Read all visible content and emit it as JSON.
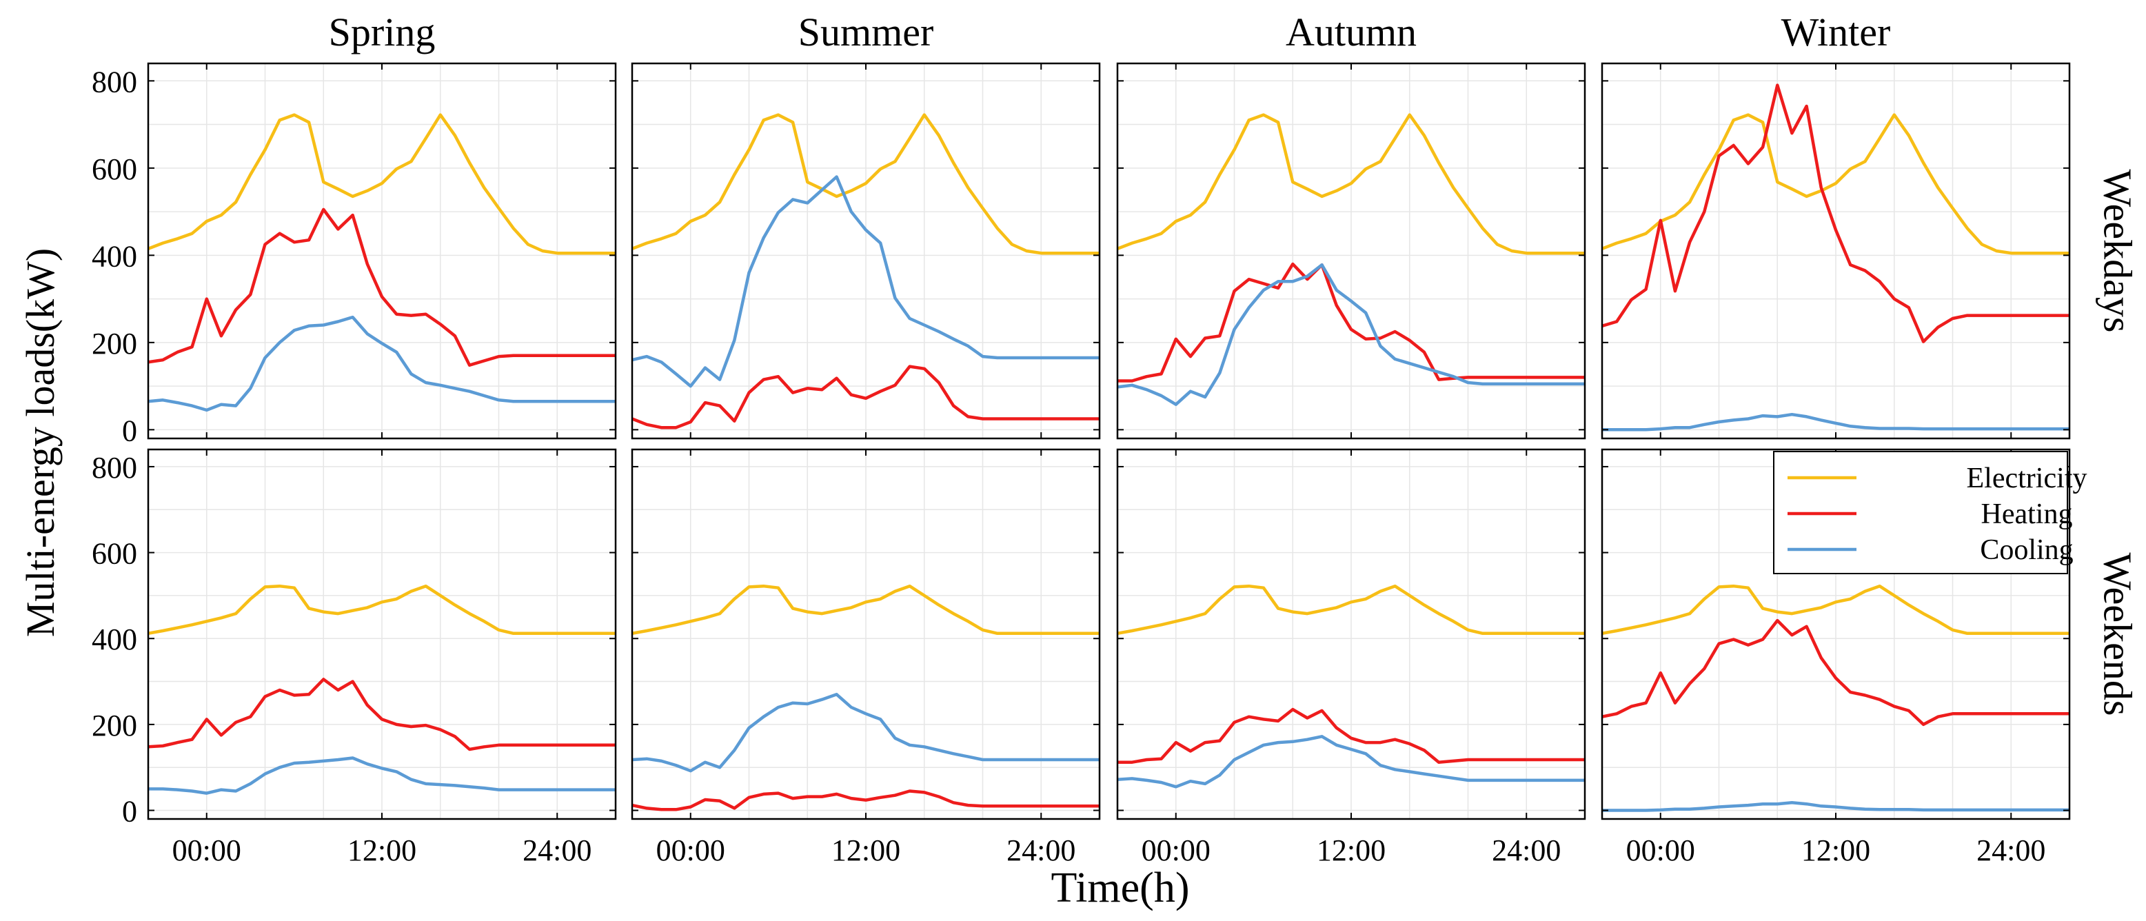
{
  "chart_data": {
    "type": "line",
    "ylabel": "Multi-energy loads(kW)",
    "xlabel": "Time(h)",
    "columns": [
      "Spring",
      "Summer",
      "Autumn",
      "Winter"
    ],
    "rows": [
      "Weekdays",
      "Weekends"
    ],
    "xlim": [
      -4,
      28
    ],
    "ylim": [
      -20,
      840
    ],
    "x_ticks": [
      0,
      12,
      24
    ],
    "x_tick_labels": [
      "00:00",
      "12:00",
      "24:00"
    ],
    "y_ticks": [
      0,
      200,
      400,
      600,
      800
    ],
    "y_tick_labels": [
      "0",
      "200",
      "400",
      "600",
      "800"
    ],
    "grid": true,
    "legend": {
      "location": "top-right of Winter weekends panel",
      "entries": [
        "Electricity",
        "Heating",
        "Cooling"
      ]
    },
    "colors": {
      "Electricity": "#F7BE16",
      "Heating": "#EE1C1C",
      "Cooling": "#5B9BD5"
    },
    "x": [
      -4,
      -3,
      -2,
      -1,
      0,
      1,
      2,
      3,
      4,
      5,
      6,
      7,
      8,
      9,
      10,
      11,
      12,
      13,
      14,
      15,
      16,
      17,
      18,
      19,
      20,
      21,
      22,
      23,
      24,
      25,
      26,
      27,
      28
    ],
    "panels": [
      {
        "season": "Spring",
        "day": "Weekdays",
        "series": [
          {
            "name": "Electricity",
            "values": [
              415,
              428,
              438,
              450,
              478,
              492,
              522,
              585,
              642,
              710,
              722,
              705,
              568,
              552,
              535,
              548,
              565,
              598,
              615,
              668,
              722,
              675,
              612,
              555,
              508,
              462,
              425,
              410,
              405,
              405,
              405,
              405,
              405
            ]
          },
          {
            "name": "Heating",
            "values": [
              155,
              160,
              178,
              190,
              300,
              215,
              275,
              310,
              425,
              450,
              430,
              435,
              505,
              460,
              492,
              380,
              305,
              265,
              262,
              265,
              242,
              215,
              148,
              158,
              168,
              170,
              170,
              170,
              170,
              170,
              170,
              170,
              170
            ]
          },
          {
            "name": "Cooling",
            "values": [
              65,
              68,
              62,
              55,
              45,
              58,
              55,
              95,
              165,
              200,
              228,
              238,
              240,
              248,
              258,
              220,
              198,
              178,
              128,
              108,
              102,
              95,
              88,
              78,
              68,
              65,
              65,
              65,
              65,
              65,
              65,
              65,
              65
            ]
          }
        ]
      },
      {
        "season": "Summer",
        "day": "Weekdays",
        "series": [
          {
            "name": "Electricity",
            "values": [
              415,
              428,
              438,
              450,
              478,
              492,
              522,
              585,
              642,
              710,
              722,
              705,
              568,
              552,
              535,
              548,
              565,
              598,
              615,
              668,
              722,
              675,
              612,
              555,
              508,
              462,
              425,
              410,
              405,
              405,
              405,
              405,
              405
            ]
          },
          {
            "name": "Heating",
            "values": [
              25,
              12,
              5,
              5,
              18,
              62,
              55,
              20,
              85,
              115,
              122,
              85,
              95,
              92,
              118,
              80,
              72,
              88,
              102,
              145,
              140,
              108,
              55,
              30,
              25,
              25,
              25,
              25,
              25,
              25,
              25,
              25,
              25
            ]
          },
          {
            "name": "Cooling",
            "values": [
              160,
              168,
              155,
              128,
              100,
              142,
              115,
              205,
              360,
              440,
              498,
              528,
              520,
              550,
              580,
              500,
              458,
              428,
              302,
              255,
              240,
              225,
              208,
              192,
              168,
              165,
              165,
              165,
              165,
              165,
              165,
              165,
              165
            ]
          }
        ]
      },
      {
        "season": "Autumn",
        "day": "Weekdays",
        "series": [
          {
            "name": "Electricity",
            "values": [
              415,
              428,
              438,
              450,
              478,
              492,
              522,
              585,
              642,
              710,
              722,
              705,
              568,
              552,
              535,
              548,
              565,
              598,
              615,
              668,
              722,
              675,
              612,
              555,
              508,
              462,
              425,
              410,
              405,
              405,
              405,
              405,
              405
            ]
          },
          {
            "name": "Heating",
            "values": [
              112,
              112,
              122,
              128,
              208,
              168,
              210,
              215,
              318,
              345,
              335,
              325,
              380,
              345,
              378,
              285,
              230,
              208,
              210,
              225,
              205,
              178,
              115,
              118,
              120,
              120,
              120,
              120,
              120,
              120,
              120,
              120,
              120
            ]
          },
          {
            "name": "Cooling",
            "values": [
              98,
              102,
              92,
              78,
              58,
              88,
              75,
              130,
              230,
              280,
              320,
              340,
              340,
              352,
              378,
              320,
              295,
              268,
              192,
              162,
              152,
              142,
              132,
              122,
              108,
              105,
              105,
              105,
              105,
              105,
              105,
              105,
              105
            ]
          }
        ]
      },
      {
        "season": "Winter",
        "day": "Weekdays",
        "series": [
          {
            "name": "Electricity",
            "values": [
              415,
              428,
              438,
              450,
              478,
              492,
              522,
              585,
              642,
              710,
              722,
              705,
              568,
              552,
              535,
              548,
              565,
              598,
              615,
              668,
              722,
              675,
              612,
              555,
              508,
              462,
              425,
              410,
              405,
              405,
              405,
              405,
              405
            ]
          },
          {
            "name": "Heating",
            "values": [
              238,
              248,
              298,
              322,
              480,
              318,
              430,
              500,
              628,
              652,
              610,
              648,
              790,
              680,
              742,
              555,
              458,
              378,
              365,
              340,
              300,
              280,
              202,
              235,
              255,
              262,
              262,
              262,
              262,
              262,
              262,
              262,
              262
            ]
          },
          {
            "name": "Cooling",
            "values": [
              0,
              0,
              0,
              0,
              2,
              5,
              5,
              12,
              18,
              22,
              25,
              32,
              30,
              35,
              30,
              22,
              15,
              8,
              5,
              3,
              3,
              3,
              2,
              2,
              2,
              2,
              2,
              2,
              2,
              2,
              2,
              2,
              2
            ]
          }
        ]
      },
      {
        "season": "Spring",
        "day": "Weekends",
        "series": [
          {
            "name": "Electricity",
            "values": [
              412,
              418,
              425,
              432,
              440,
              448,
              458,
              492,
              520,
              522,
              518,
              470,
              462,
              458,
              465,
              472,
              485,
              492,
              510,
              522,
              500,
              478,
              458,
              440,
              420,
              412,
              412,
              412,
              412,
              412,
              412,
              412,
              412
            ]
          },
          {
            "name": "Heating",
            "values": [
              148,
              150,
              158,
              165,
              212,
              175,
              205,
              218,
              265,
              280,
              268,
              270,
              305,
              280,
              300,
              245,
              212,
              200,
              195,
              198,
              188,
              172,
              142,
              148,
              152,
              152,
              152,
              152,
              152,
              152,
              152,
              152,
              152
            ]
          },
          {
            "name": "Cooling",
            "values": [
              50,
              50,
              48,
              45,
              40,
              48,
              45,
              62,
              85,
              100,
              110,
              112,
              115,
              118,
              122,
              108,
              98,
              90,
              72,
              62,
              60,
              58,
              55,
              52,
              48,
              48,
              48,
              48,
              48,
              48,
              48,
              48,
              48
            ]
          }
        ]
      },
      {
        "season": "Summer",
        "day": "Weekends",
        "series": [
          {
            "name": "Electricity",
            "values": [
              412,
              418,
              425,
              432,
              440,
              448,
              458,
              492,
              520,
              522,
              518,
              470,
              462,
              458,
              465,
              472,
              485,
              492,
              510,
              522,
              500,
              478,
              458,
              440,
              420,
              412,
              412,
              412,
              412,
              412,
              412,
              412,
              412
            ]
          },
          {
            "name": "Heating",
            "values": [
              12,
              5,
              2,
              2,
              8,
              25,
              22,
              5,
              30,
              38,
              40,
              28,
              32,
              32,
              38,
              28,
              24,
              30,
              35,
              45,
              42,
              32,
              18,
              12,
              10,
              10,
              10,
              10,
              10,
              10,
              10,
              10,
              10
            ]
          },
          {
            "name": "Cooling",
            "values": [
              118,
              120,
              115,
              105,
              92,
              112,
              100,
              140,
              192,
              218,
              240,
              250,
              248,
              258,
              270,
              240,
              225,
              212,
              168,
              152,
              148,
              140,
              132,
              125,
              118,
              118,
              118,
              118,
              118,
              118,
              118,
              118,
              118
            ]
          }
        ]
      },
      {
        "season": "Autumn",
        "day": "Weekends",
        "series": [
          {
            "name": "Electricity",
            "values": [
              412,
              418,
              425,
              432,
              440,
              448,
              458,
              492,
              520,
              522,
              518,
              470,
              462,
              458,
              465,
              472,
              485,
              492,
              510,
              522,
              500,
              478,
              458,
              440,
              420,
              412,
              412,
              412,
              412,
              412,
              412,
              412,
              412
            ]
          },
          {
            "name": "Heating",
            "values": [
              112,
              112,
              118,
              120,
              158,
              138,
              158,
              162,
              205,
              218,
              212,
              208,
              235,
              215,
              232,
              192,
              168,
              158,
              158,
              165,
              155,
              140,
              112,
              115,
              118,
              118,
              118,
              118,
              118,
              118,
              118,
              118,
              118
            ]
          },
          {
            "name": "Cooling",
            "values": [
              72,
              74,
              70,
              65,
              55,
              68,
              62,
              82,
              118,
              135,
              152,
              158,
              160,
              165,
              172,
              152,
              142,
              132,
              105,
              95,
              90,
              85,
              80,
              75,
              70,
              70,
              70,
              70,
              70,
              70,
              70,
              70,
              70
            ]
          }
        ]
      },
      {
        "season": "Winter",
        "day": "Weekends",
        "series": [
          {
            "name": "Electricity",
            "values": [
              412,
              418,
              425,
              432,
              440,
              448,
              458,
              492,
              520,
              522,
              518,
              470,
              462,
              458,
              465,
              472,
              485,
              492,
              510,
              522,
              500,
              478,
              458,
              440,
              420,
              412,
              412,
              412,
              412,
              412,
              412,
              412,
              412
            ]
          },
          {
            "name": "Heating",
            "values": [
              218,
              225,
              242,
              250,
              320,
              250,
              295,
              330,
              388,
              398,
              385,
              398,
              442,
              408,
              428,
              355,
              308,
              275,
              268,
              258,
              242,
              232,
              200,
              218,
              225,
              225,
              225,
              225,
              225,
              225,
              225,
              225,
              225
            ]
          },
          {
            "name": "Cooling",
            "values": [
              0,
              0,
              0,
              0,
              1,
              3,
              3,
              5,
              8,
              10,
              12,
              15,
              15,
              18,
              15,
              10,
              8,
              5,
              3,
              2,
              2,
              2,
              1,
              1,
              1,
              1,
              1,
              1,
              1,
              1,
              1,
              1,
              1
            ]
          }
        ]
      }
    ]
  }
}
